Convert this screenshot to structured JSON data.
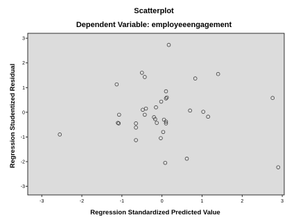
{
  "chart_data": {
    "type": "scatter",
    "title": "Scatterplot",
    "subtitle": "Dependent Variable: employeeengagement",
    "xlabel": "Regression Standardized Predicted Value",
    "ylabel": "Regression Studentized Residual",
    "xlim": [
      -3.35,
      3.05
    ],
    "ylim": [
      -3.35,
      3.2
    ],
    "xticks": [
      -3,
      -2,
      -1,
      0,
      1,
      2,
      3
    ],
    "yticks": [
      3,
      2,
      1,
      0,
      -1,
      -2,
      -3
    ],
    "grid": false,
    "background": "#dcdcdc",
    "marker_color": "#3c3c3c",
    "points": [
      {
        "x": 0.17,
        "y": 2.73
      },
      {
        "x": -0.5,
        "y": 1.6
      },
      {
        "x": -0.43,
        "y": 1.43
      },
      {
        "x": 1.4,
        "y": 1.55
      },
      {
        "x": 0.83,
        "y": 1.37
      },
      {
        "x": -1.13,
        "y": 1.13
      },
      {
        "x": 0.1,
        "y": 0.85
      },
      {
        "x": 0.12,
        "y": 0.6
      },
      {
        "x": 0.1,
        "y": 0.56
      },
      {
        "x": 2.76,
        "y": 0.58
      },
      {
        "x": -0.02,
        "y": 0.43
      },
      {
        "x": -0.15,
        "y": 0.2
      },
      {
        "x": -0.48,
        "y": 0.1
      },
      {
        "x": -0.4,
        "y": 0.15
      },
      {
        "x": 0.7,
        "y": 0.07
      },
      {
        "x": 1.03,
        "y": 0.02
      },
      {
        "x": -1.07,
        "y": -0.1
      },
      {
        "x": -0.43,
        "y": -0.1
      },
      {
        "x": 1.15,
        "y": -0.18
      },
      {
        "x": -0.2,
        "y": -0.2
      },
      {
        "x": -0.17,
        "y": -0.28
      },
      {
        "x": 0.05,
        "y": -0.3
      },
      {
        "x": 0.1,
        "y": -0.38
      },
      {
        "x": -0.13,
        "y": -0.43
      },
      {
        "x": 0.1,
        "y": -0.45
      },
      {
        "x": -1.1,
        "y": -0.43
      },
      {
        "x": -1.08,
        "y": -0.45
      },
      {
        "x": -0.65,
        "y": -0.45
      },
      {
        "x": -0.65,
        "y": -0.62
      },
      {
        "x": 0.03,
        "y": -0.8
      },
      {
        "x": -2.55,
        "y": -0.9
      },
      {
        "x": -0.03,
        "y": -1.05
      },
      {
        "x": -0.65,
        "y": -1.13
      },
      {
        "x": 0.62,
        "y": -1.88
      },
      {
        "x": 0.08,
        "y": -2.05
      },
      {
        "x": 2.9,
        "y": -2.23
      }
    ]
  }
}
